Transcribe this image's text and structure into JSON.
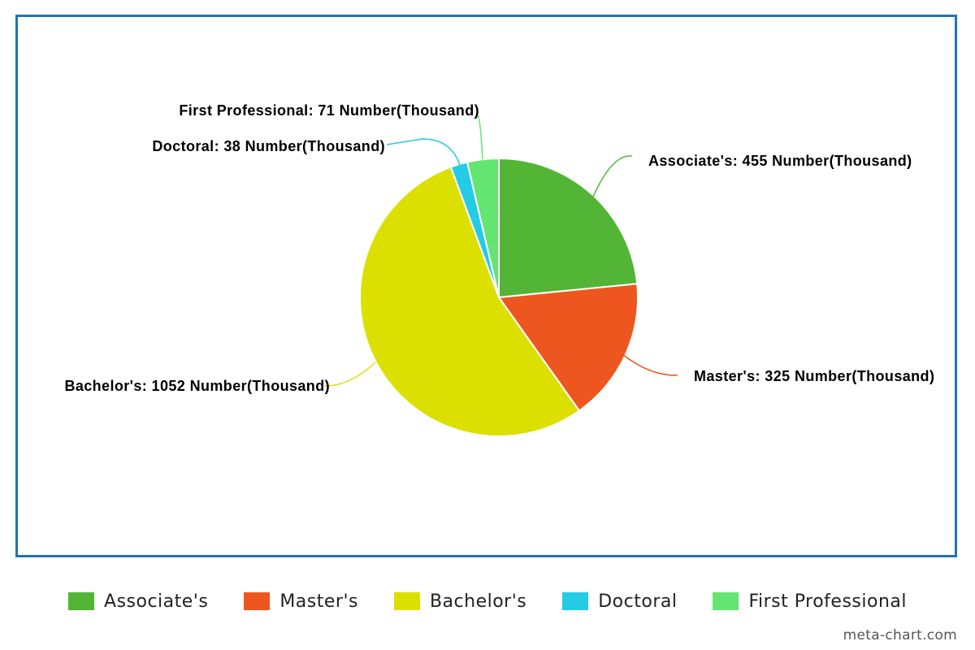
{
  "chart_data": {
    "type": "pie",
    "unit": "Number(Thousand)",
    "slices": [
      {
        "name": "Associate's",
        "value": 455,
        "color": "#52b535",
        "label": "Associate's: 455 Number(Thousand)"
      },
      {
        "name": "Master's",
        "value": 325,
        "color": "#ee561f",
        "label": "Master's: 325 Number(Thousand)"
      },
      {
        "name": "Bachelor's",
        "value": 1052,
        "color": "#dce000",
        "label": "Bachelor's: 1052 Number(Thousand)"
      },
      {
        "name": "Doctoral",
        "value": 38,
        "color": "#24cbe5",
        "label": "Doctoral: 38 Number(Thousand)"
      },
      {
        "name": "First Professional",
        "value": 71,
        "color": "#64e572",
        "label": "First Professional: 71 Number(Thousand)"
      }
    ],
    "legend_position": "bottom"
  },
  "credit": "meta-chart.com"
}
